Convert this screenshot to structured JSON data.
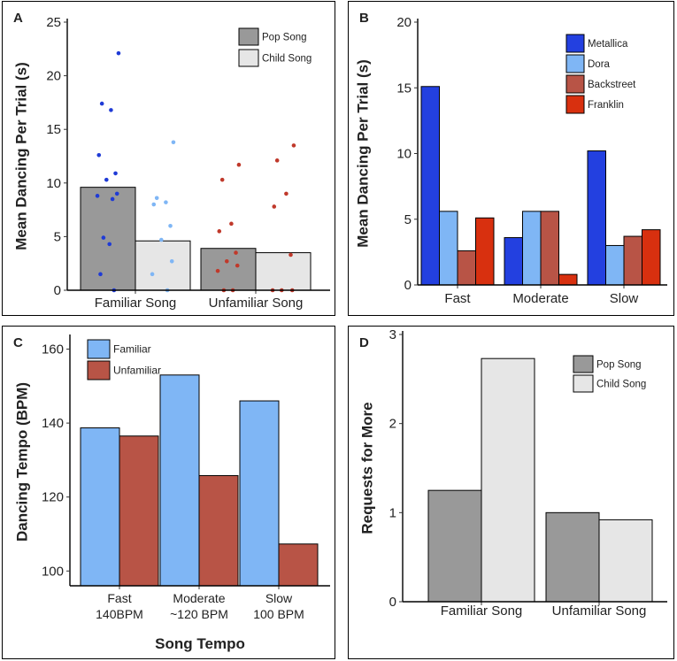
{
  "chart_data": [
    {
      "id": "A",
      "panel_label": "A",
      "type": "bar",
      "categories": [
        "Familiar Song",
        "Unfamiliar Song"
      ],
      "series": [
        {
          "name": "Pop Song",
          "color": "#999999",
          "values": [
            9.6,
            3.9
          ]
        },
        {
          "name": "Child Song",
          "color": "#e6e6e6",
          "values": [
            4.6,
            3.5
          ]
        }
      ],
      "points": [
        {
          "cat": 0,
          "series": 0,
          "color": "#1f3bd6",
          "values": [
            22.1,
            17.4,
            16.8,
            12.6,
            10.9,
            10.3,
            9.0,
            8.8,
            8.5,
            4.9,
            4.3,
            1.5,
            0.0
          ]
        },
        {
          "cat": 0,
          "series": 1,
          "color": "#7fb6f5",
          "values": [
            13.8,
            8.6,
            8.2,
            8.0,
            6.0,
            4.7,
            2.7,
            1.5,
            0.0
          ]
        },
        {
          "cat": 1,
          "series": 0,
          "color": "#c0392b",
          "values": [
            11.7,
            10.3,
            6.2,
            5.5,
            3.5,
            2.7,
            2.3,
            1.8,
            0.0,
            0.0
          ]
        },
        {
          "cat": 1,
          "series": 1,
          "color": "#c0392b",
          "values": [
            13.5,
            12.1,
            9.0,
            7.8,
            3.3,
            0.0,
            0.0,
            0.0
          ]
        }
      ],
      "ylabel": "Mean Dancing Per Trial (s)",
      "xlabel": "",
      "ylim": [
        0,
        25
      ],
      "yticks": [
        0,
        5,
        10,
        15,
        20,
        25
      ],
      "legend_position": "top-right"
    },
    {
      "id": "B",
      "panel_label": "B",
      "type": "bar",
      "categories": [
        "Fast",
        "Moderate",
        "Slow"
      ],
      "series": [
        {
          "name": "Metallica",
          "color": "#2340e0",
          "values": [
            15.1,
            3.6,
            10.2
          ]
        },
        {
          "name": "Dora",
          "color": "#7fb6f5",
          "values": [
            5.6,
            5.6,
            3.0
          ]
        },
        {
          "name": "Backstreet",
          "color": "#b85446",
          "values": [
            2.6,
            5.6,
            3.7
          ]
        },
        {
          "name": "Franklin",
          "color": "#d8300f",
          "values": [
            5.1,
            0.8,
            4.2
          ]
        }
      ],
      "ylabel": "Mean Dancing Per Trial (s)",
      "xlabel": "",
      "ylim": [
        0,
        20
      ],
      "yticks": [
        0,
        5,
        10,
        15,
        20
      ],
      "legend_position": "top-right"
    },
    {
      "id": "C",
      "panel_label": "C",
      "type": "bar",
      "categories": [
        "Fast\n140BPM",
        "Moderate\n~120 BPM",
        "Slow\n100 BPM"
      ],
      "series": [
        {
          "name": "Familiar",
          "color": "#7fb6f5",
          "values": [
            138.7,
            153.0,
            146.0
          ]
        },
        {
          "name": "Unfamiliar",
          "color": "#b85446",
          "values": [
            136.5,
            125.8,
            107.3
          ]
        }
      ],
      "ylabel": "Dancing Tempo (BPM)",
      "xlabel": "Song Tempo",
      "ylim": [
        96,
        163
      ],
      "yticks": [
        100,
        120,
        140,
        160
      ],
      "legend_position": "top-left"
    },
    {
      "id": "D",
      "panel_label": "D",
      "type": "bar",
      "categories": [
        "Familiar Song",
        "Unfamiliar Song"
      ],
      "series": [
        {
          "name": "Pop Song",
          "color": "#999999",
          "values": [
            1.25,
            1.0
          ]
        },
        {
          "name": "Child Song",
          "color": "#e6e6e6",
          "values": [
            2.73,
            0.92
          ]
        }
      ],
      "ylabel": "Requests for More",
      "xlabel": "",
      "ylim": [
        0,
        3
      ],
      "yticks": [
        0,
        1,
        2,
        3
      ],
      "legend_position": "top-right"
    }
  ]
}
